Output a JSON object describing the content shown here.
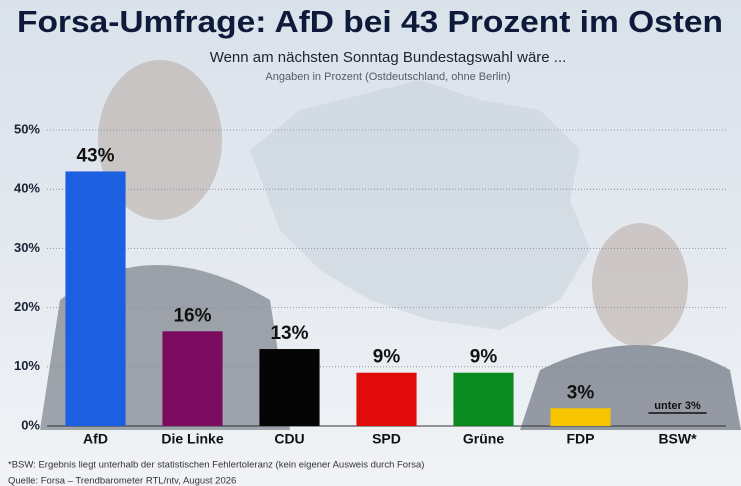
{
  "chart_data": {
    "type": "bar",
    "title": "Forsa-Umfrage: AfD bei 43 Prozent im Osten",
    "subtitle": "Wenn am nächsten Sonntag Bundestagswahl wäre ...",
    "note": "Angaben in Prozent (Ostdeutschland, ohne Berlin)",
    "footnote": "*BSW: Ergebnis liegt unterhalb der statistischen Fehlertoleranz (kein eigener Ausweis durch Forsa)",
    "source": "Quelle: Forsa – Trendbarometer RTL/ntv, August 2026",
    "categories": [
      "AfD",
      "Die Linke",
      "CDU",
      "SPD",
      "Grüne",
      "FDP",
      "BSW*"
    ],
    "values": [
      43,
      16,
      13,
      9,
      9,
      3,
      null
    ],
    "value_labels": [
      "43%",
      "16%",
      "13%",
      "9%",
      "9%",
      "3%",
      "unter 3%"
    ],
    "colors": [
      "#1c5fe0",
      "#7b0b5f",
      "#050505",
      "#e10b0b",
      "#0b8a1f",
      "#f6c500",
      "#111111"
    ],
    "ylim": [
      0,
      50
    ],
    "yticks": [
      {
        "value": 0,
        "label": "0%"
      },
      {
        "value": 10,
        "label": "10%"
      },
      {
        "value": 20,
        "label": "20%"
      },
      {
        "value": 30,
        "label": "30%"
      },
      {
        "value": 40,
        "label": "40%"
      },
      {
        "value": 50,
        "label": "50%"
      }
    ],
    "grid": true
  }
}
